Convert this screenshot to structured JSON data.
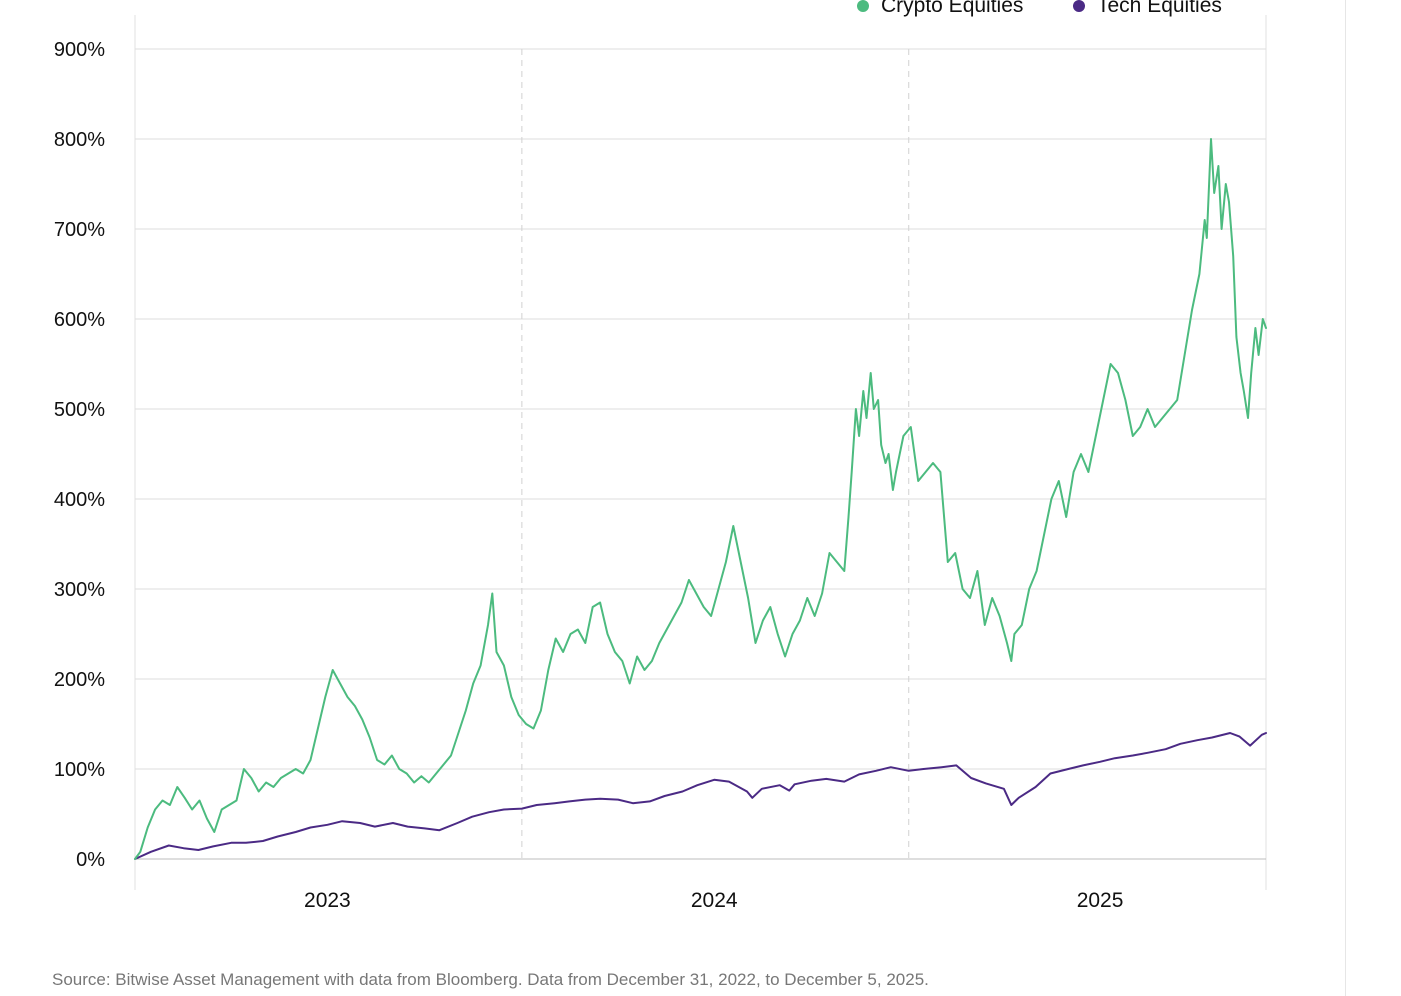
{
  "chart_data": {
    "type": "line",
    "title": "",
    "xlabel": "",
    "ylabel": "",
    "x_range": [
      "2022-12-31",
      "2025-12-05"
    ],
    "ylim": [
      0,
      900
    ],
    "y_ticks": [
      0,
      100,
      200,
      300,
      400,
      500,
      600,
      700,
      800,
      900
    ],
    "y_tick_labels": [
      "0%",
      "100%",
      "200%",
      "300%",
      "400%",
      "500%",
      "600%",
      "700%",
      "800%",
      "900%"
    ],
    "x_tick_labels": [
      "2023",
      "2024",
      "2025"
    ],
    "x_tick_dates": [
      "2023-07-01",
      "2024-07-01",
      "2025-07-01"
    ],
    "year_dividers": [
      "2024-01-01",
      "2025-01-01"
    ],
    "grid": true,
    "legend_position": "top-right",
    "series": [
      {
        "name": "Crypto Equities",
        "color": "#4cbb7f",
        "points": [
          [
            "2022-12-31",
            0
          ],
          [
            "2023-01-05",
            8
          ],
          [
            "2023-01-12",
            35
          ],
          [
            "2023-01-19",
            55
          ],
          [
            "2023-01-26",
            65
          ],
          [
            "2023-02-02",
            60
          ],
          [
            "2023-02-09",
            80
          ],
          [
            "2023-02-16",
            68
          ],
          [
            "2023-02-23",
            55
          ],
          [
            "2023-03-02",
            65
          ],
          [
            "2023-03-09",
            45
          ],
          [
            "2023-03-16",
            30
          ],
          [
            "2023-03-23",
            55
          ],
          [
            "2023-03-30",
            60
          ],
          [
            "2023-04-06",
            65
          ],
          [
            "2023-04-13",
            100
          ],
          [
            "2023-04-20",
            90
          ],
          [
            "2023-04-27",
            75
          ],
          [
            "2023-05-04",
            85
          ],
          [
            "2023-05-11",
            80
          ],
          [
            "2023-05-18",
            90
          ],
          [
            "2023-05-25",
            95
          ],
          [
            "2023-06-01",
            100
          ],
          [
            "2023-06-08",
            95
          ],
          [
            "2023-06-15",
            110
          ],
          [
            "2023-06-22",
            145
          ],
          [
            "2023-06-29",
            180
          ],
          [
            "2023-07-06",
            210
          ],
          [
            "2023-07-13",
            195
          ],
          [
            "2023-07-20",
            180
          ],
          [
            "2023-07-27",
            170
          ],
          [
            "2023-08-03",
            155
          ],
          [
            "2023-08-10",
            135
          ],
          [
            "2023-08-17",
            110
          ],
          [
            "2023-08-24",
            105
          ],
          [
            "2023-08-31",
            115
          ],
          [
            "2023-09-07",
            100
          ],
          [
            "2023-09-14",
            95
          ],
          [
            "2023-09-21",
            85
          ],
          [
            "2023-09-28",
            92
          ],
          [
            "2023-10-05",
            85
          ],
          [
            "2023-10-12",
            95
          ],
          [
            "2023-10-19",
            105
          ],
          [
            "2023-10-26",
            115
          ],
          [
            "2023-11-02",
            140
          ],
          [
            "2023-11-09",
            165
          ],
          [
            "2023-11-16",
            195
          ],
          [
            "2023-11-23",
            215
          ],
          [
            "2023-11-30",
            260
          ],
          [
            "2023-12-04",
            295
          ],
          [
            "2023-12-08",
            230
          ],
          [
            "2023-12-15",
            215
          ],
          [
            "2023-12-22",
            180
          ],
          [
            "2023-12-29",
            160
          ],
          [
            "2024-01-05",
            150
          ],
          [
            "2024-01-12",
            145
          ],
          [
            "2024-01-19",
            165
          ],
          [
            "2024-01-26",
            210
          ],
          [
            "2024-02-02",
            245
          ],
          [
            "2024-02-09",
            230
          ],
          [
            "2024-02-16",
            250
          ],
          [
            "2024-02-23",
            255
          ],
          [
            "2024-03-01",
            240
          ],
          [
            "2024-03-08",
            280
          ],
          [
            "2024-03-15",
            285
          ],
          [
            "2024-03-22",
            250
          ],
          [
            "2024-03-29",
            230
          ],
          [
            "2024-04-05",
            220
          ],
          [
            "2024-04-12",
            195
          ],
          [
            "2024-04-19",
            225
          ],
          [
            "2024-04-26",
            210
          ],
          [
            "2024-05-03",
            220
          ],
          [
            "2024-05-10",
            240
          ],
          [
            "2024-05-17",
            255
          ],
          [
            "2024-05-24",
            270
          ],
          [
            "2024-05-31",
            285
          ],
          [
            "2024-06-07",
            310
          ],
          [
            "2024-06-14",
            295
          ],
          [
            "2024-06-21",
            280
          ],
          [
            "2024-06-28",
            270
          ],
          [
            "2024-07-05",
            300
          ],
          [
            "2024-07-12",
            330
          ],
          [
            "2024-07-19",
            370
          ],
          [
            "2024-07-26",
            330
          ],
          [
            "2024-08-02",
            290
          ],
          [
            "2024-08-09",
            240
          ],
          [
            "2024-08-16",
            265
          ],
          [
            "2024-08-23",
            280
          ],
          [
            "2024-08-30",
            250
          ],
          [
            "2024-09-06",
            225
          ],
          [
            "2024-09-13",
            250
          ],
          [
            "2024-09-20",
            265
          ],
          [
            "2024-09-27",
            290
          ],
          [
            "2024-10-04",
            270
          ],
          [
            "2024-10-11",
            295
          ],
          [
            "2024-10-18",
            340
          ],
          [
            "2024-10-25",
            330
          ],
          [
            "2024-11-01",
            320
          ],
          [
            "2024-11-05",
            380
          ],
          [
            "2024-11-08",
            430
          ],
          [
            "2024-11-12",
            500
          ],
          [
            "2024-11-15",
            470
          ],
          [
            "2024-11-19",
            520
          ],
          [
            "2024-11-22",
            490
          ],
          [
            "2024-11-26",
            540
          ],
          [
            "2024-11-29",
            500
          ],
          [
            "2024-12-03",
            510
          ],
          [
            "2024-12-06",
            460
          ],
          [
            "2024-12-10",
            440
          ],
          [
            "2024-12-13",
            450
          ],
          [
            "2024-12-17",
            410
          ],
          [
            "2024-12-20",
            430
          ],
          [
            "2024-12-27",
            470
          ],
          [
            "2025-01-03",
            480
          ],
          [
            "2025-01-10",
            420
          ],
          [
            "2025-01-17",
            430
          ],
          [
            "2025-01-24",
            440
          ],
          [
            "2025-01-31",
            430
          ],
          [
            "2025-02-07",
            330
          ],
          [
            "2025-02-14",
            340
          ],
          [
            "2025-02-21",
            300
          ],
          [
            "2025-02-28",
            290
          ],
          [
            "2025-03-07",
            320
          ],
          [
            "2025-03-14",
            260
          ],
          [
            "2025-03-21",
            290
          ],
          [
            "2025-03-28",
            270
          ],
          [
            "2025-04-04",
            240
          ],
          [
            "2025-04-08",
            220
          ],
          [
            "2025-04-11",
            250
          ],
          [
            "2025-04-18",
            260
          ],
          [
            "2025-04-25",
            300
          ],
          [
            "2025-05-02",
            320
          ],
          [
            "2025-05-09",
            360
          ],
          [
            "2025-05-16",
            400
          ],
          [
            "2025-05-23",
            420
          ],
          [
            "2025-05-30",
            380
          ],
          [
            "2025-06-06",
            430
          ],
          [
            "2025-06-13",
            450
          ],
          [
            "2025-06-20",
            430
          ],
          [
            "2025-06-27",
            470
          ],
          [
            "2025-07-04",
            510
          ],
          [
            "2025-07-11",
            550
          ],
          [
            "2025-07-18",
            540
          ],
          [
            "2025-07-25",
            510
          ],
          [
            "2025-08-01",
            470
          ],
          [
            "2025-08-08",
            480
          ],
          [
            "2025-08-15",
            500
          ],
          [
            "2025-08-22",
            480
          ],
          [
            "2025-08-29",
            490
          ],
          [
            "2025-09-05",
            500
          ],
          [
            "2025-09-12",
            510
          ],
          [
            "2025-09-19",
            560
          ],
          [
            "2025-09-26",
            610
          ],
          [
            "2025-10-03",
            650
          ],
          [
            "2025-10-08",
            710
          ],
          [
            "2025-10-10",
            690
          ],
          [
            "2025-10-14",
            800
          ],
          [
            "2025-10-17",
            740
          ],
          [
            "2025-10-21",
            770
          ],
          [
            "2025-10-24",
            700
          ],
          [
            "2025-10-28",
            750
          ],
          [
            "2025-10-31",
            730
          ],
          [
            "2025-11-04",
            670
          ],
          [
            "2025-11-07",
            580
          ],
          [
            "2025-11-11",
            540
          ],
          [
            "2025-11-14",
            520
          ],
          [
            "2025-11-18",
            490
          ],
          [
            "2025-11-21",
            540
          ],
          [
            "2025-11-25",
            590
          ],
          [
            "2025-11-28",
            560
          ],
          [
            "2025-12-02",
            600
          ],
          [
            "2025-12-05",
            590
          ]
        ]
      },
      {
        "name": "Tech Equities",
        "color": "#4b2a85",
        "points": [
          [
            "2022-12-31",
            0
          ],
          [
            "2023-01-15",
            8
          ],
          [
            "2023-02-01",
            15
          ],
          [
            "2023-02-15",
            12
          ],
          [
            "2023-03-01",
            10
          ],
          [
            "2023-03-15",
            14
          ],
          [
            "2023-04-01",
            18
          ],
          [
            "2023-04-15",
            18
          ],
          [
            "2023-05-01",
            20
          ],
          [
            "2023-05-15",
            25
          ],
          [
            "2023-06-01",
            30
          ],
          [
            "2023-06-15",
            35
          ],
          [
            "2023-07-01",
            38
          ],
          [
            "2023-07-15",
            42
          ],
          [
            "2023-08-01",
            40
          ],
          [
            "2023-08-15",
            36
          ],
          [
            "2023-09-01",
            40
          ],
          [
            "2023-09-15",
            36
          ],
          [
            "2023-10-01",
            34
          ],
          [
            "2023-10-15",
            32
          ],
          [
            "2023-11-01",
            40
          ],
          [
            "2023-11-15",
            47
          ],
          [
            "2023-12-01",
            52
          ],
          [
            "2023-12-15",
            55
          ],
          [
            "2024-01-01",
            56
          ],
          [
            "2024-01-15",
            60
          ],
          [
            "2024-02-01",
            62
          ],
          [
            "2024-02-15",
            64
          ],
          [
            "2024-03-01",
            66
          ],
          [
            "2024-03-15",
            67
          ],
          [
            "2024-04-01",
            66
          ],
          [
            "2024-04-15",
            62
          ],
          [
            "2024-05-01",
            64
          ],
          [
            "2024-05-15",
            70
          ],
          [
            "2024-06-01",
            75
          ],
          [
            "2024-06-15",
            82
          ],
          [
            "2024-07-01",
            88
          ],
          [
            "2024-07-15",
            86
          ],
          [
            "2024-08-01",
            75
          ],
          [
            "2024-08-06",
            68
          ],
          [
            "2024-08-15",
            78
          ],
          [
            "2024-09-01",
            82
          ],
          [
            "2024-09-10",
            76
          ],
          [
            "2024-09-15",
            83
          ],
          [
            "2024-10-01",
            87
          ],
          [
            "2024-10-15",
            89
          ],
          [
            "2024-11-01",
            86
          ],
          [
            "2024-11-15",
            94
          ],
          [
            "2024-12-01",
            98
          ],
          [
            "2024-12-15",
            102
          ],
          [
            "2025-01-01",
            98
          ],
          [
            "2025-01-15",
            100
          ],
          [
            "2025-02-01",
            102
          ],
          [
            "2025-02-15",
            104
          ],
          [
            "2025-03-01",
            90
          ],
          [
            "2025-03-15",
            84
          ],
          [
            "2025-04-01",
            78
          ],
          [
            "2025-04-08",
            60
          ],
          [
            "2025-04-15",
            68
          ],
          [
            "2025-05-01",
            80
          ],
          [
            "2025-05-15",
            95
          ],
          [
            "2025-06-01",
            100
          ],
          [
            "2025-06-15",
            104
          ],
          [
            "2025-07-01",
            108
          ],
          [
            "2025-07-15",
            112
          ],
          [
            "2025-08-01",
            115
          ],
          [
            "2025-08-15",
            118
          ],
          [
            "2025-09-01",
            122
          ],
          [
            "2025-09-15",
            128
          ],
          [
            "2025-10-01",
            132
          ],
          [
            "2025-10-15",
            135
          ],
          [
            "2025-11-01",
            140
          ],
          [
            "2025-11-10",
            136
          ],
          [
            "2025-11-20",
            126
          ],
          [
            "2025-12-01",
            138
          ],
          [
            "2025-12-05",
            140
          ]
        ]
      }
    ]
  },
  "source_note": "Source: Bitwise Asset Management with data from Bloomberg. Data from December 31, 2022, to December 5, 2025."
}
